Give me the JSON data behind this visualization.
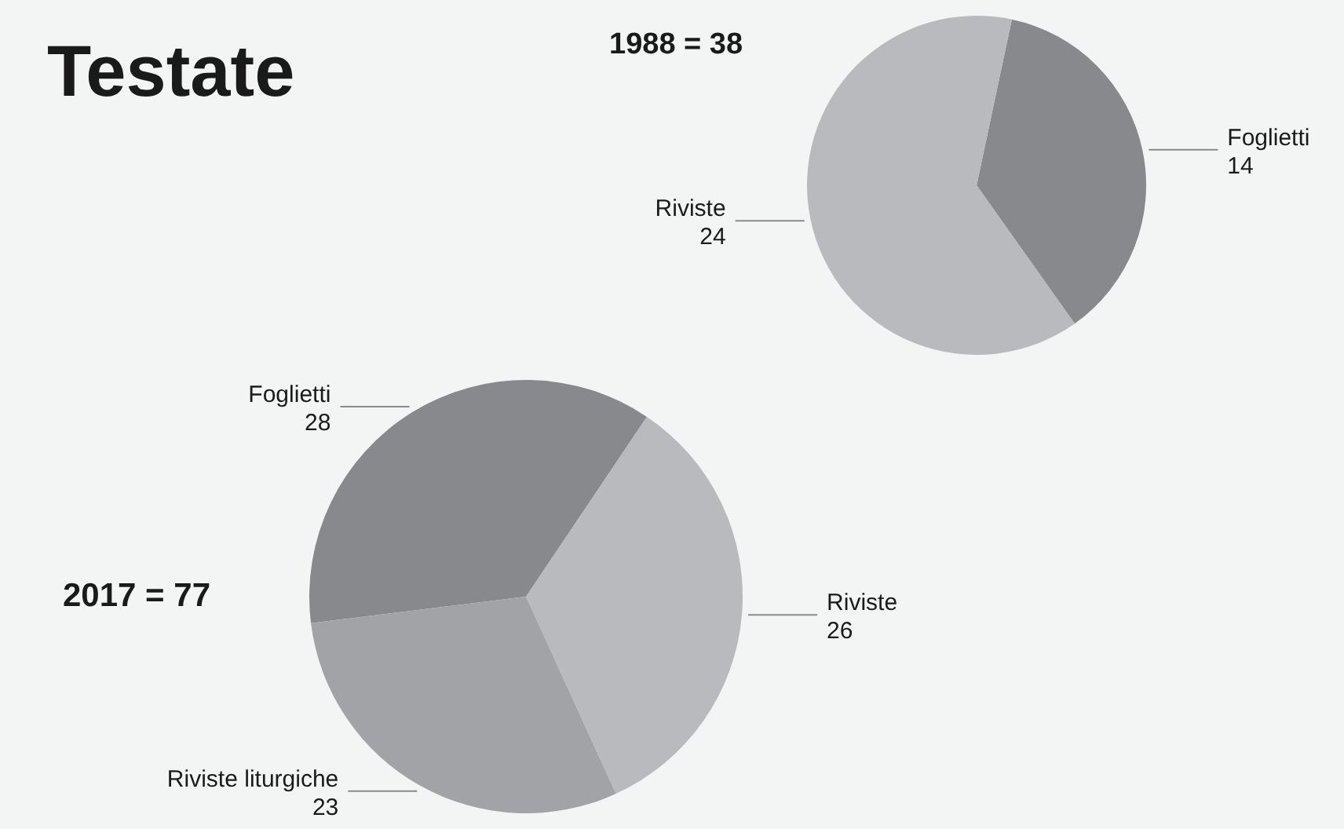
{
  "chart_data": [
    {
      "type": "pie",
      "title": "Testate",
      "subtitle": "1988 = 38",
      "categories": [
        "Foglietti",
        "Riviste"
      ],
      "values": [
        14,
        24
      ],
      "colors": [
        "#88898d",
        "#b9babd"
      ],
      "data_labels": true
    },
    {
      "type": "pie",
      "title": "2017 = 77",
      "categories": [
        "Foglietti",
        "Riviste",
        "Riviste liturgiche"
      ],
      "values": [
        28,
        26,
        23
      ],
      "colors": [
        "#88898d",
        "#b9babd",
        "#a2a3a6"
      ],
      "data_labels": true
    }
  ]
}
